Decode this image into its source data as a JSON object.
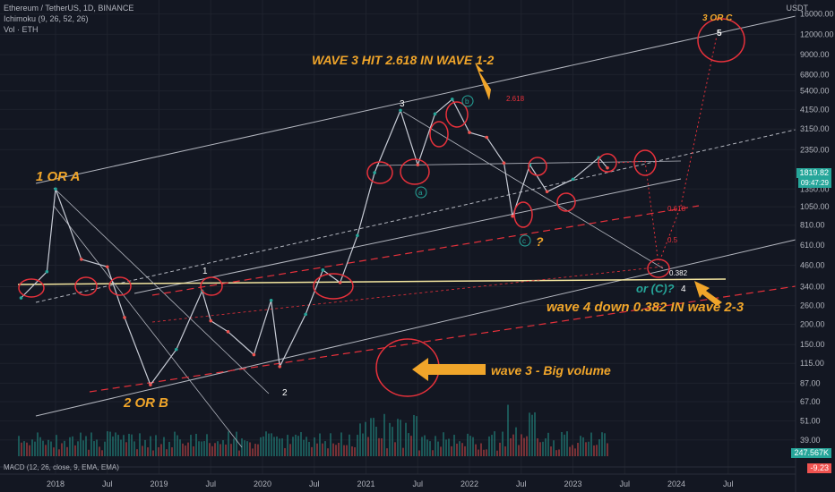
{
  "legend": {
    "symbol": "Ethereum / TetherUS, 1D, BINANCE",
    "ichimoku": "Ichimoku (9, 26, 52, 26)",
    "vol": "Vol · ETH",
    "macd": "MACD (12, 26, close, 9, EMA, EMA)"
  },
  "price_axis": {
    "currency": "USDT",
    "ticks": [
      "16000.00",
      "12000.00",
      "9000.00",
      "6800.00",
      "5400.00",
      "4150.00",
      "3150.00",
      "2350.00",
      "1350.00",
      "1050.00",
      "810.00",
      "610.00",
      "460.00",
      "340.00",
      "260.00",
      "200.00",
      "150.00",
      "115.00",
      "87.00",
      "67.00",
      "51.00",
      "39.00"
    ],
    "current_price": "1819.82",
    "countdown": "09:47:29",
    "volume_label": "247.567K",
    "macd_label": "-9.23"
  },
  "time_axis": {
    "labels": [
      "2018",
      "Jul",
      "2019",
      "Jul",
      "2020",
      "Jul",
      "2021",
      "Jul",
      "2022",
      "Jul",
      "2023",
      "Jul",
      "2024",
      "Jul"
    ]
  },
  "annotations": {
    "wave3_hit": "WAVE 3 HIT 2.618 IN WAVE 1-2",
    "one_or_a": "1 OR A",
    "two_or_b": "2 OR B",
    "three_or_c": "3 OR C",
    "wave3_volume": "wave 3 - Big volume",
    "wave4_down": "wave 4 down 0.382 IN wave 2-3",
    "or_c": "or (C)?",
    "question": "?"
  },
  "wave_labels": {
    "w1": "1",
    "w2": "2",
    "w3": "3",
    "w4": "4",
    "w5": "5",
    "a": "a",
    "b": "b",
    "c": "c"
  },
  "fib_labels": {
    "f2618": "2.618",
    "f0618": "0.618",
    "f05": "0.5",
    "f0382": "0.382"
  },
  "colors": {
    "background": "#131722",
    "annotation": "#f0a52a",
    "circle": "#e8313b",
    "teal": "#26a69a",
    "up": "#26a69a",
    "down": "#ef5350",
    "yellow_line": "#f5e7a0"
  },
  "chart_data": {
    "type": "line",
    "scale": "log",
    "title": "Ethereum / TetherUS, 1D, BINANCE",
    "xlabel": "",
    "ylabel": "",
    "ylim": [
      37,
      19000
    ],
    "x": [
      "2017-09",
      "2017-12",
      "2018-01",
      "2018-04",
      "2018-07",
      "2018-09",
      "2018-12",
      "2019-03",
      "2019-06",
      "2019-07",
      "2019-09",
      "2019-12",
      "2020-02",
      "2020-03",
      "2020-06",
      "2020-08",
      "2020-10",
      "2020-12",
      "2021-02",
      "2021-05",
      "2021-07",
      "2021-09",
      "2021-11",
      "2022-01",
      "2022-03",
      "2022-05",
      "2022-06",
      "2022-08",
      "2022-10",
      "2023-01",
      "2023-04",
      "2023-05"
    ],
    "series": [
      {
        "values": [
          290,
          420,
          1350,
          500,
          450,
          220,
          85,
          140,
          320,
          210,
          180,
          130,
          280,
          110,
          230,
          430,
          360,
          700,
          1700,
          4100,
          1900,
          3900,
          4800,
          3000,
          2800,
          1950,
          920,
          1900,
          1300,
          1550,
          2100,
          1819.82
        ]
      }
    ]
  }
}
